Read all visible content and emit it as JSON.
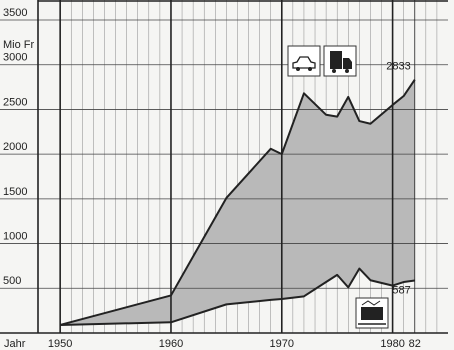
{
  "chart_data": {
    "type": "band",
    "y_label": "Mio Fr",
    "x_label": "Jahr",
    "x": [
      1950,
      1960,
      1965,
      1969,
      1970,
      1972,
      1974,
      1975,
      1976,
      1977,
      1978,
      1980,
      1981,
      1982
    ],
    "series": [
      {
        "color": "#222222",
        "values": [
          90,
          420,
          1510,
          2060,
          2000,
          2680,
          2440,
          2420,
          2640,
          2370,
          2340,
          2550,
          2650,
          2833
        ]
      },
      {
        "color": "#222222",
        "values": [
          90,
          120,
          320,
          370,
          380,
          410,
          570,
          650,
          510,
          720,
          590,
          530,
          570,
          587
        ]
      }
    ],
    "fill_color": "#b9b9b9",
    "xlim": [
      1948,
      1985
    ],
    "ylim": [
      0,
      3500
    ],
    "xticks": [
      1950,
      1960,
      1970,
      1980,
      {
        "value": 1982,
        "label": "82"
      }
    ],
    "minor_xticks": [
      1951,
      1952,
      1953,
      1954,
      1955,
      1956,
      1957,
      1958,
      1959,
      1961,
      1962,
      1963,
      1964,
      1965,
      1966,
      1967,
      1968,
      1969,
      1971,
      1972,
      1973,
      1974,
      1975,
      1976,
      1977,
      1978,
      1979,
      1981,
      1983,
      1984
    ],
    "yticks": [
      500,
      1000,
      1500,
      2000,
      2500,
      3000,
      3500
    ],
    "grid": true
  }
}
